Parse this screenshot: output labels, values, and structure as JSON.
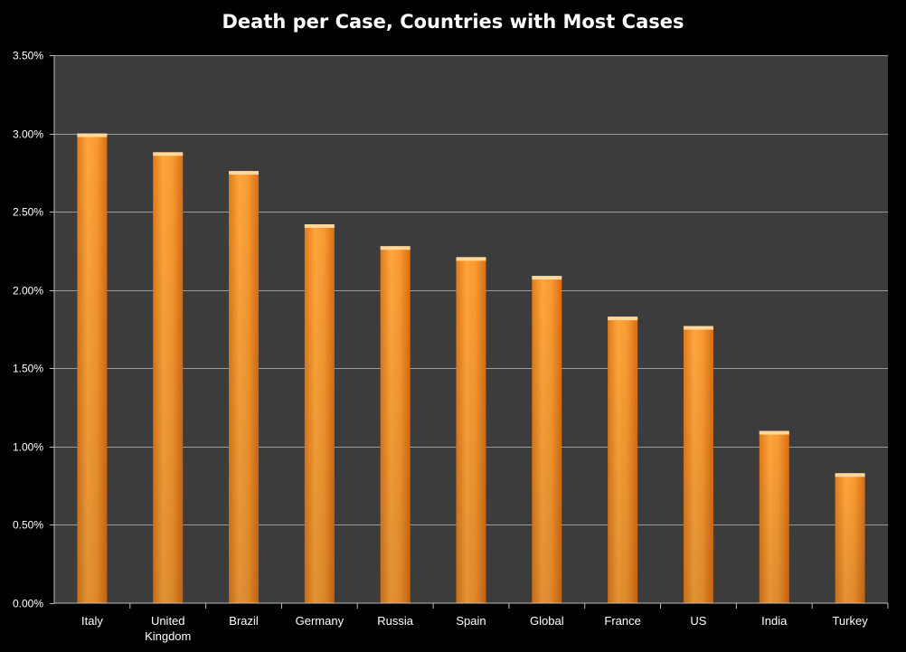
{
  "chart_data": {
    "type": "bar",
    "title": "Death per Case, Countries with Most Cases",
    "xlabel": "",
    "ylabel": "",
    "categories": [
      "Italy",
      "United Kingdom",
      "Brazil",
      "Germany",
      "Russia",
      "Spain",
      "Global",
      "France",
      "US",
      "India",
      "Turkey"
    ],
    "category_lines": [
      [
        "Italy"
      ],
      [
        "United",
        "Kingdom"
      ],
      [
        "Brazil"
      ],
      [
        "Germany"
      ],
      [
        "Russia"
      ],
      [
        "Spain"
      ],
      [
        "Global"
      ],
      [
        "France"
      ],
      [
        "US"
      ],
      [
        "India"
      ],
      [
        "Turkey"
      ]
    ],
    "values": [
      3.0,
      2.88,
      2.76,
      2.42,
      2.28,
      2.21,
      2.09,
      1.83,
      1.77,
      1.1,
      0.83
    ],
    "ylim": [
      0,
      3.5
    ],
    "yticks": [
      0,
      0.5,
      1.0,
      1.5,
      2.0,
      2.5,
      3.0,
      3.5
    ],
    "ytick_labels": [
      "0.00%",
      "0.50%",
      "1.00%",
      "1.50%",
      "2.00%",
      "2.50%",
      "3.00%",
      "3.50%"
    ],
    "grid": true,
    "legend": "none",
    "colors": {
      "background": "#000000",
      "plot_area": "#3c3c3c",
      "gridline": "#9a9a9a",
      "bar_light": "#ffb347",
      "bar_mid": "#f7962a",
      "bar_dark": "#d9741a",
      "text": "#ffffff"
    }
  }
}
